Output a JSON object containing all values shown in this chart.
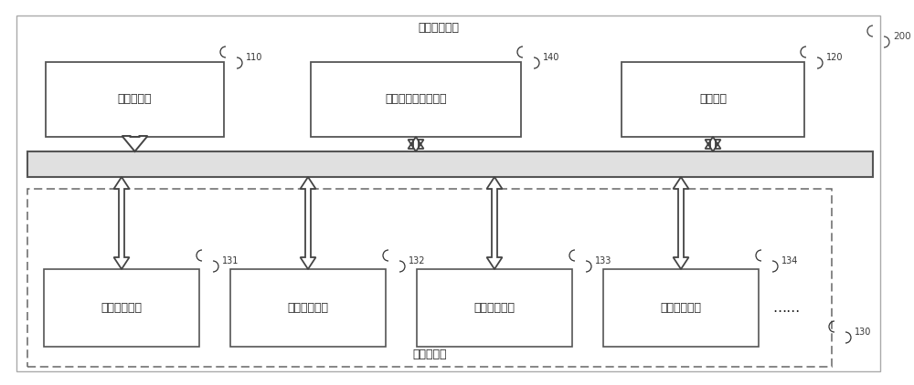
{
  "title_system": "任务处理系统",
  "label_200": "200",
  "label_110": "110",
  "label_140": "140",
  "label_120": "120",
  "label_130": "130",
  "label_131": "131",
  "label_132": "132",
  "label_133": "133",
  "label_134": "134",
  "box_scheduler": "任务调度器",
  "box_dma": "直接存储器访问单元",
  "box_shared": "共享内存",
  "box_unit1": "第一处理单元",
  "box_unit2": "第二处理单元",
  "box_unit3": "第三处理单元",
  "box_unit4": "第四处理单元",
  "box_dots": "……",
  "label_bus_group": "处理单元组",
  "bg_color": "#ffffff",
  "box_fill": "#ffffff",
  "box_edge": "#555555",
  "dashed_edge": "#666666",
  "bus_fill": "#e0e0e0",
  "bus_edge": "#555555",
  "outer_box_edge": "#aaaaaa",
  "arrow_color": "#444444",
  "arrow_fill": "#ffffff",
  "text_color": "#222222",
  "label_color": "#333333",
  "font_size_main": 9,
  "font_size_label": 7,
  "font_size_title": 9
}
